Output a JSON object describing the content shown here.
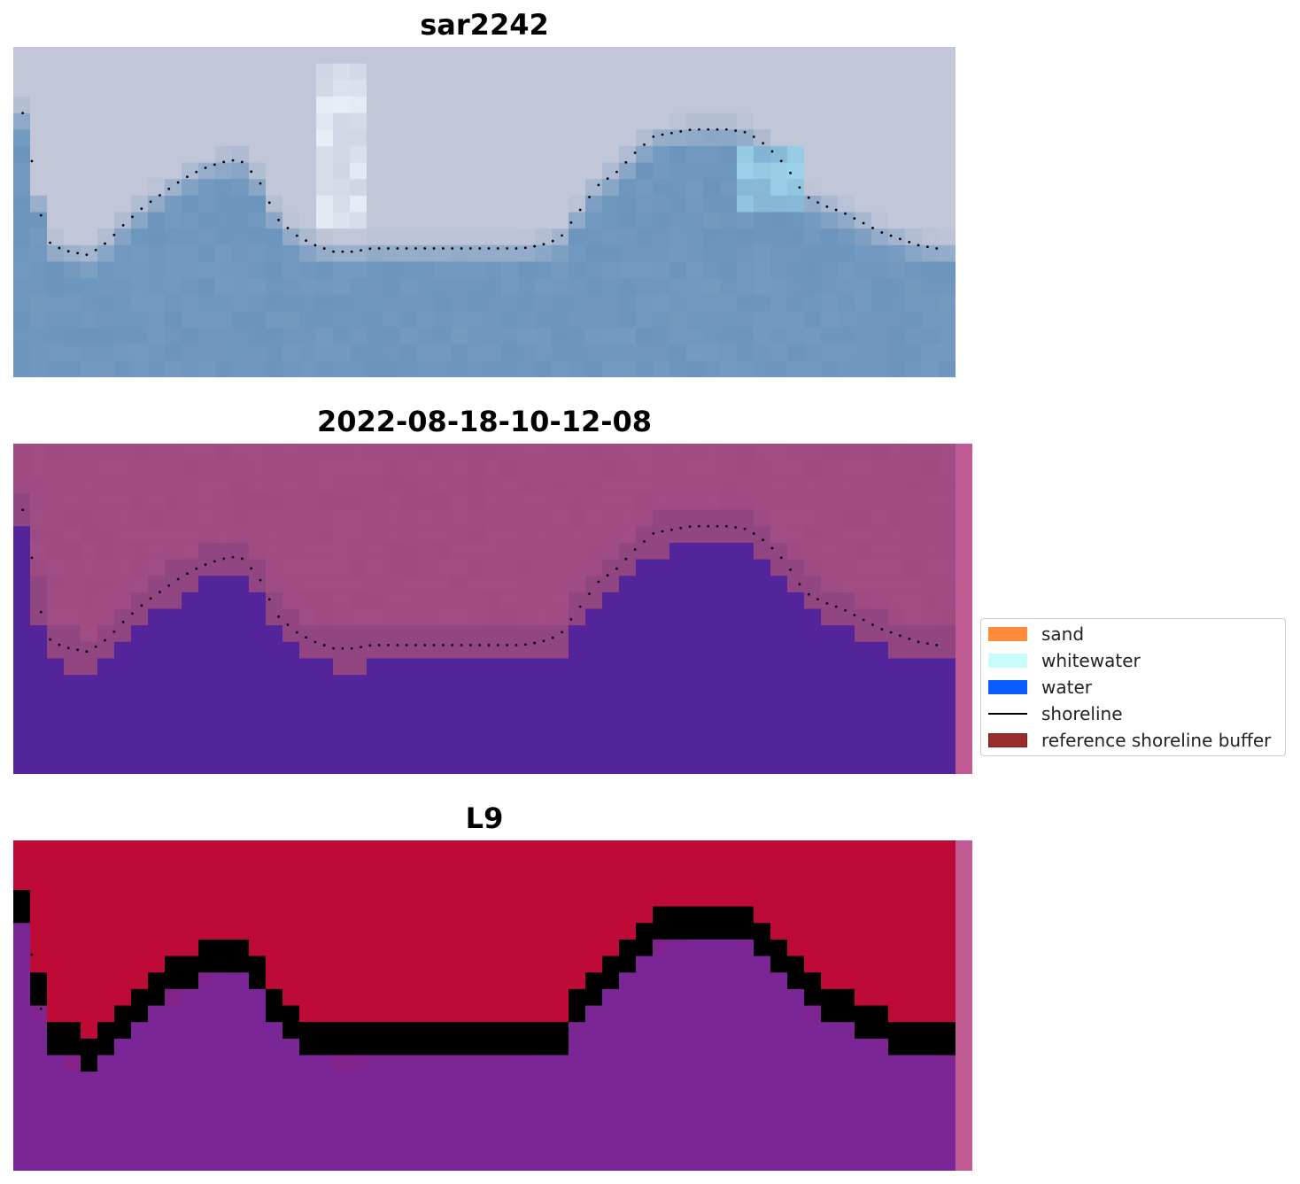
{
  "figure": {
    "panel_titles": [
      "sar2242",
      "2022-08-18-10-12-08",
      "L9"
    ]
  },
  "legend": {
    "items": [
      {
        "label": "sand",
        "type": "patch",
        "color": "#ff8c3a",
        "edge": "#ff8c3a"
      },
      {
        "label": "whitewater",
        "type": "patch",
        "color": "#c8fcfc",
        "edge": "#c8fcfc"
      },
      {
        "label": "water",
        "type": "patch",
        "color": "#0a5cff",
        "edge": "#0a5cff"
      },
      {
        "label": "shoreline",
        "type": "line",
        "color": "#000000"
      },
      {
        "label": "reference shoreline buffer",
        "type": "patch",
        "color": "#992d2d",
        "edge": "#7a1a1a"
      }
    ]
  },
  "chart_data": [
    {
      "type": "image",
      "title": "sar2242",
      "content": "RGB satellite image, pale grey-blue land in upper part and blue water in lower part",
      "colors": {
        "land": "#c1c6d8",
        "water": "#6b95bd",
        "whitewater": "#f2f9fe"
      },
      "shoreline": {
        "style": "dotted",
        "color": "#000000",
        "x": [
          0.01,
          0.02,
          0.03,
          0.04,
          0.06,
          0.08,
          0.1,
          0.12,
          0.14,
          0.16,
          0.18,
          0.2,
          0.22,
          0.24,
          0.26,
          0.28,
          0.3,
          0.32,
          0.34,
          0.36,
          0.38,
          0.4,
          0.42,
          0.44,
          0.46,
          0.48,
          0.5,
          0.52,
          0.54,
          0.56,
          0.58,
          0.6,
          0.62,
          0.64,
          0.66,
          0.68,
          0.7,
          0.72,
          0.74,
          0.76,
          0.78,
          0.8,
          0.82,
          0.84,
          0.86,
          0.88,
          0.9,
          0.92,
          0.94,
          0.96,
          0.98
        ],
        "y": [
          0.2,
          0.35,
          0.52,
          0.6,
          0.62,
          0.63,
          0.59,
          0.53,
          0.48,
          0.44,
          0.4,
          0.37,
          0.35,
          0.34,
          0.4,
          0.52,
          0.57,
          0.6,
          0.62,
          0.62,
          0.61,
          0.61,
          0.61,
          0.61,
          0.61,
          0.61,
          0.61,
          0.61,
          0.61,
          0.6,
          0.58,
          0.5,
          0.42,
          0.38,
          0.32,
          0.27,
          0.26,
          0.25,
          0.25,
          0.25,
          0.26,
          0.3,
          0.36,
          0.45,
          0.48,
          0.5,
          0.53,
          0.56,
          0.58,
          0.6,
          0.61
        ]
      }
    },
    {
      "type": "classification",
      "title": "2022-08-18-10-12-08",
      "content": "Classified image: water class (dark purple) below the sand/land class (mauve)",
      "colors": {
        "land": "#9d4b82",
        "water": "#54249a",
        "buffer_edge": "#c05c93"
      },
      "shoreline": {
        "style": "dotted",
        "color": "#000000",
        "same_as_panel": 1
      }
    },
    {
      "type": "classification_probability",
      "title": "L9",
      "content": "Probability map: red (land) above purple (water)",
      "colors": {
        "land": "#bd0a36",
        "water": "#7a2696",
        "buffer_edge": "#c05c93"
      },
      "shoreline": {
        "style": "dotted",
        "color": "#000000",
        "same_as_panel": 1
      }
    }
  ]
}
